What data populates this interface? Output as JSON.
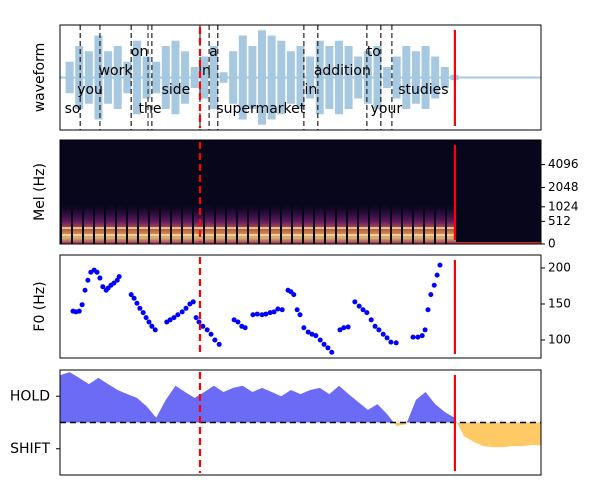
{
  "chart_data": [
    {
      "type": "waveform",
      "ylabel": "waveform",
      "xlim": [
        0,
        100
      ],
      "ylim": [
        -1,
        1
      ],
      "color": "#a6c8e0",
      "x": [
        0,
        2,
        4,
        6,
        8,
        10,
        12,
        14,
        16,
        18,
        20,
        22,
        24,
        26,
        28,
        30,
        32,
        34,
        36,
        38,
        40,
        42,
        44,
        46,
        48,
        50,
        52,
        54,
        56,
        58,
        60,
        62,
        64,
        66,
        68,
        70,
        72,
        74,
        76,
        78,
        80,
        82
      ],
      "values": [
        0,
        0.3,
        0.6,
        0.5,
        0.8,
        0.5,
        0.6,
        0.3,
        0.7,
        0.4,
        0.3,
        0.6,
        0.7,
        0.5,
        0.2,
        0.4,
        0.6,
        0.1,
        0.5,
        0.8,
        0.6,
        0.9,
        0.8,
        0.7,
        0.5,
        0.6,
        0.4,
        0.7,
        0.6,
        0.7,
        0.6,
        0.4,
        0.5,
        0.6,
        0.2,
        0.4,
        0.6,
        0.5,
        0.6,
        0.4,
        0.2,
        0.05
      ],
      "words": [
        {
          "text": "so",
          "start": 1,
          "end": 4.2
        },
        {
          "text": "you",
          "start": 4.2,
          "end": 8.3
        },
        {
          "text": "work",
          "start": 8.3,
          "end": 14.8
        },
        {
          "text": "on",
          "start": 14.8,
          "end": 18.3
        },
        {
          "text": "the",
          "start": 18.3,
          "end": 19.1
        },
        {
          "text": "side",
          "start": 19.1,
          "end": 29.1
        },
        {
          "text": "in",
          "start": 29.1,
          "end": 31.0
        },
        {
          "text": "a",
          "start": 31.0,
          "end": 32.8
        },
        {
          "text": "supermarket",
          "start": 32.8,
          "end": 50.7
        },
        {
          "text": "in",
          "start": 50.7,
          "end": 53.6
        },
        {
          "text": "addition",
          "start": 53.6,
          "end": 63.8
        },
        {
          "text": "to",
          "start": 63.8,
          "end": 66.7
        },
        {
          "text": "your",
          "start": 66.7,
          "end": 69.0
        },
        {
          "text": "studies",
          "start": 69.0,
          "end": 82.1
        }
      ]
    },
    {
      "type": "spectrogram",
      "ylabel": "Mel (Hz)",
      "xlim": [
        0,
        100
      ],
      "yscale": "mel",
      "ylim": [
        0,
        8000
      ],
      "yticks": [
        0,
        512,
        1024,
        2048,
        4096
      ],
      "yaxis_side": "right"
    },
    {
      "type": "scatter",
      "ylabel": "F0 (Hz)",
      "xlim": [
        0,
        100
      ],
      "ylim": [
        75,
        218
      ],
      "yticks": [
        100,
        150,
        200
      ],
      "yaxis_side": "right",
      "color": "#0000ff",
      "x": [
        2.7,
        3.3,
        4.0,
        4.6,
        5.2,
        5.8,
        6.4,
        7.1,
        7.7,
        8.3,
        8.9,
        9.6,
        10.0,
        10.6,
        11.2,
        11.9,
        12.3,
        14.8,
        15.4,
        16.0,
        16.6,
        17.3,
        17.9,
        18.5,
        19.1,
        19.8,
        22.2,
        22.9,
        23.7,
        24.5,
        25.4,
        26.2,
        27.0,
        27.7,
        28.3,
        28.9,
        29.7,
        30.6,
        31.4,
        32.2,
        33.1,
        36.2,
        37.0,
        37.8,
        38.5,
        40.1,
        41.0,
        42.0,
        42.8,
        43.7,
        44.5,
        45.3,
        46.2,
        47.4,
        48.0,
        48.6,
        49.3,
        49.9,
        50.7,
        51.6,
        52.4,
        53.2,
        54.1,
        54.9,
        55.7,
        56.5,
        58.2,
        59.0,
        59.9,
        61.3,
        62.2,
        63.0,
        63.8,
        64.7,
        65.5,
        66.3,
        67.2,
        68.0,
        68.8,
        69.9,
        73.4,
        74.4,
        75.3,
        75.9,
        76.5,
        77.1,
        77.8,
        78.4,
        79.0
      ],
      "values": [
        140,
        139,
        140,
        149,
        169,
        183,
        194,
        197,
        194,
        186,
        174,
        169,
        172,
        176,
        179,
        183,
        188,
        163,
        158,
        151,
        144,
        138,
        131,
        125,
        119,
        114,
        125,
        128,
        131,
        135,
        139,
        144,
        150,
        153,
        131,
        125,
        119,
        114,
        108,
        100,
        94,
        128,
        125,
        119,
        117,
        135,
        136,
        135,
        136,
        138,
        139,
        143,
        142,
        169,
        167,
        163,
        142,
        135,
        117,
        111,
        108,
        106,
        100,
        94,
        89,
        83,
        114,
        117,
        118,
        153,
        147,
        142,
        138,
        128,
        119,
        114,
        108,
        103,
        97,
        96,
        104,
        104,
        106,
        114,
        142,
        163,
        176,
        190,
        204
      ]
    },
    {
      "type": "area",
      "xlim": [
        0,
        100
      ],
      "ylim": [
        -1,
        1
      ],
      "baseline": 0,
      "yticks": [
        {
          "value": 0.5,
          "label": "HOLD"
        },
        {
          "value": -0.5,
          "label": "SHIFT"
        }
      ],
      "positive_color": "#6b6bf5",
      "negative_color": "#ffc966",
      "x": [
        0,
        2,
        4,
        6,
        8,
        10,
        12,
        14,
        16,
        18,
        20,
        22,
        24,
        26,
        28,
        30,
        32,
        34,
        36,
        38,
        40,
        42,
        44,
        46,
        48,
        50,
        52,
        54,
        56,
        58,
        60,
        62,
        64,
        66,
        68,
        70,
        72,
        74,
        76,
        78,
        80,
        82,
        84,
        86,
        88,
        90,
        92,
        94,
        96,
        98,
        100
      ],
      "values": [
        0.9,
        0.96,
        0.85,
        0.73,
        0.85,
        0.73,
        0.62,
        0.54,
        0.47,
        0.31,
        0.09,
        0.43,
        0.7,
        0.58,
        0.47,
        0.58,
        0.7,
        0.58,
        0.66,
        0.7,
        0.58,
        0.66,
        0.58,
        0.5,
        0.62,
        0.54,
        0.62,
        0.66,
        0.54,
        0.7,
        0.54,
        0.39,
        0.24,
        0.35,
        0.16,
        -0.07,
        -0.03,
        0.43,
        0.58,
        0.35,
        0.2,
        0.09,
        -0.26,
        -0.37,
        -0.45,
        -0.47,
        -0.47,
        -0.45,
        -0.45,
        -0.43,
        -0.43
      ]
    }
  ],
  "markers": {
    "dashed": 29.1,
    "solid": 82.1,
    "color": "#ff0000"
  }
}
